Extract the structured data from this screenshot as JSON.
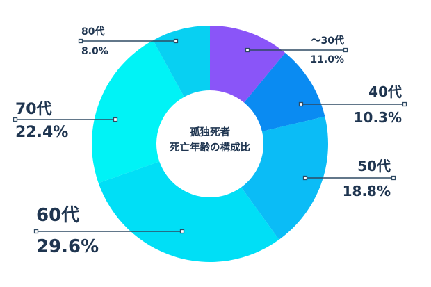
{
  "chart_data": {
    "type": "pie",
    "variant": "donut",
    "title": "孤独死者 死亡年齢の構成比",
    "center_label": [
      "孤独死者",
      "死亡年齢の構成比"
    ],
    "start_angle_deg": 0,
    "direction": "clockwise",
    "categories": [
      "〜30代",
      "40代",
      "50代",
      "60代",
      "70代",
      "80代"
    ],
    "values": [
      11.0,
      10.3,
      18.8,
      29.6,
      22.4,
      8.0
    ],
    "value_labels": [
      "11.0%",
      "10.3%",
      "18.8%",
      "29.6%",
      "22.4%",
      "8.0%"
    ],
    "colors": [
      "#8a55f8",
      "#0a8bf2",
      "#0bbcf6",
      "#00dff6",
      "#00f3f6",
      "#08d0f2"
    ],
    "legend": "none (leader-line callouts)"
  },
  "labels": [
    {
      "name": "〜30代",
      "pct": "11.0%"
    },
    {
      "name": "40代",
      "pct": "10.3%"
    },
    {
      "name": "50代",
      "pct": "18.8%"
    },
    {
      "name": "60代",
      "pct": "29.6%"
    },
    {
      "name": "70代",
      "pct": "22.4%"
    },
    {
      "name": "80代",
      "pct": "8.0%"
    }
  ],
  "center": {
    "line1": "孤独死者",
    "line2": "死亡年齢の構成比"
  },
  "colors": {
    "text": "#1f3550",
    "leader": "#2f4a63"
  }
}
